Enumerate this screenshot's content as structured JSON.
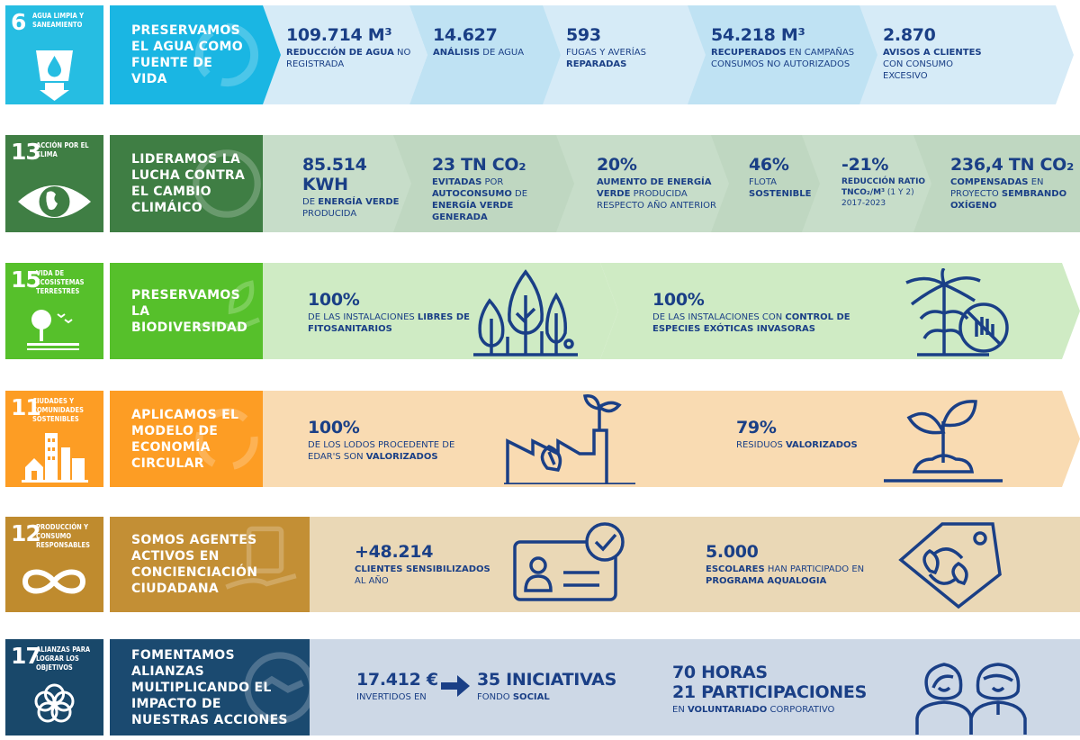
{
  "rows": [
    {
      "sdg": {
        "num": "6",
        "label": "AGUA LIMPIA Y SANEAMIENTO",
        "color": "#26bde2",
        "icon": "water-glass-icon"
      },
      "heading": {
        "text": "PRESERVAMOS EL AGUA COMO FUENTE DE VIDA",
        "color": "#1ab6e3"
      },
      "cells": [
        {
          "big": "109.714 m³",
          "pre": "",
          "bold": "REDUCCIÓN DE AGUA",
          "post": " NO REGISTRADA"
        },
        {
          "big": "14.627",
          "pre": "",
          "bold": "ANÁLISIS",
          "post": " DE AGUA"
        },
        {
          "big": "593",
          "pre": "FUGAS Y AVERÍAS ",
          "bold": "REPARADAS",
          "post": ""
        },
        {
          "big": "54.218 m³",
          "pre": "",
          "bold": "RECUPERADOS",
          "post": " EN CAMPAÑAS CONSUMOS NO AUTORIZADOS"
        },
        {
          "big": "2.870",
          "pre": "",
          "bold": "AVISOS A CLIENTES",
          "post": " CON CONSUMO EXCESIVO"
        }
      ]
    },
    {
      "sdg": {
        "num": "13",
        "label": "ACCIÓN POR EL CLIMA",
        "color": "#3f7e44",
        "icon": "eye-globe-icon"
      },
      "heading": {
        "text": "LIDERAMOS LA LUCHA CONTRA EL CAMBIO CLIMÁICO",
        "color": "#3f7e44"
      },
      "cells": [
        {
          "big": "85.514 KWh",
          "pre": "DE ",
          "bold": "ENERGÍA VERDE",
          "post": " PRODUCIDA"
        },
        {
          "big": "23 tn CO₂",
          "pre": "",
          "bold": "EVITADAS",
          "post": " POR ",
          "bold2": "AUTOCONSUMO",
          "post2": " DE ",
          "bold3": "ENERGÍA VERDE GENERADA"
        },
        {
          "big": "20%",
          "pre": "",
          "bold": "AUMENTO DE ENERGÍA VERDE",
          "post": " PRODUCIDA RESPECTO AÑO ANTERIOR"
        },
        {
          "big": "46%",
          "pre": "FLOTA ",
          "bold": "SOSTENIBLE",
          "post": ""
        },
        {
          "big": "-21%",
          "pre": "",
          "bold": "REDUCCIÓN RATIO tnCO₂/m³",
          "post": " (1 Y 2) 2017-2023"
        },
        {
          "big": "236,4 tn CO₂",
          "pre": "",
          "bold": "COMPENSADAS",
          "post": " EN PROYECTO ",
          "bold2": "SEMBRANDO OXÍGENO"
        }
      ]
    },
    {
      "sdg": {
        "num": "15",
        "label": "VIDA DE ECOSISTEMAS TERRESTRES",
        "color": "#56c02b",
        "icon": "tree-birds-icon"
      },
      "heading": {
        "text": "PRESERVAMOS LA BIODIVERSIDAD",
        "color": "#56c02b"
      },
      "cells": [
        {
          "big": "100%",
          "pre": "DE LAS INSTALACIONES ",
          "bold": "LIBRES DE FITOSANITARIOS",
          "post": "",
          "icon": "trees-icon"
        },
        {
          "big": "100%",
          "pre": "DE LAS INSTALACIONES CON ",
          "bold": "CONTROL DE ESPECIES EXÓTICAS INVASORAS",
          "post": "",
          "icon": "palm-stop-icon"
        }
      ]
    },
    {
      "sdg": {
        "num": "11",
        "label": "CIUDADES Y COMUNIDADES SOSTENIBLES",
        "color": "#fd9d24",
        "icon": "city-icon"
      },
      "heading": {
        "text": "APLICAMOS EL MODELO DE ECONOMÍA CIRCULAR",
        "color": "#fd9d24"
      },
      "cells": [
        {
          "big": "100%",
          "pre": "DE LOS LODOS PROCEDENTE DE EDAR'S SON ",
          "bold": "VALORIZADOS",
          "post": "",
          "icon": "factory-leaf-icon"
        },
        {
          "big": "79%",
          "pre": "RESIDUOS ",
          "bold": "VALORIZADOS",
          "post": "",
          "icon": "sprout-icon"
        }
      ]
    },
    {
      "sdg": {
        "num": "12",
        "label": "PRODUCCIÓN Y CONSUMO RESPONSABLES",
        "color": "#bf8b2e",
        "icon": "infinity-icon"
      },
      "heading": {
        "text": "SOMOS AGENTES ACTIVOS EN CONCIENCIACIÓN CIUDADANA",
        "color": "#c38f35"
      },
      "cells": [
        {
          "big": "+48.214",
          "pre": "",
          "bold": "CLIENTES SENSIBILIZADOS",
          "post": " AL AÑO",
          "icon": "id-card-check-icon"
        },
        {
          "big": "5.000",
          "pre": "",
          "bold": "ESCOLARES",
          "post": " HAN PARTICIPADO EN ",
          "bold2": "PROGRAMA AQUALOGIA",
          "icon": "eco-tag-icon"
        }
      ]
    },
    {
      "sdg": {
        "num": "17",
        "label": "ALIANZAS PARA LOGRAR LOS OBJETIVOS",
        "color": "#19486a",
        "icon": "flower-rings-icon"
      },
      "heading": {
        "text": "FOMENTAMOS ALIANZAS MULTIPLICANDO EL IMPACTO DE NUESTRAS ACCIONES",
        "color": "#1b4a70"
      },
      "cells": [
        {
          "big": "17.412 €",
          "pre": "INVERTIDOS EN",
          "bold": "",
          "post": "",
          "big2": "35 INICIATIVAS",
          "pre2": "FONDO ",
          "bold2": "SOCIAL"
        },
        {
          "big": "70 HORAS",
          "big2": "21 PARTICIPACIONES",
          "pre": "EN ",
          "bold": "VOLUNTARIADO",
          "post": " CORPORATIVO",
          "icon": "volunteers-icon"
        }
      ]
    }
  ]
}
